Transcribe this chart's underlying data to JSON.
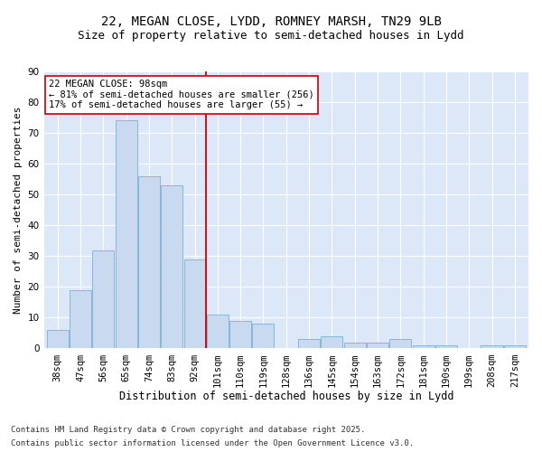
{
  "title1": "22, MEGAN CLOSE, LYDD, ROMNEY MARSH, TN29 9LB",
  "title2": "Size of property relative to semi-detached houses in Lydd",
  "xlabel": "Distribution of semi-detached houses by size in Lydd",
  "ylabel": "Number of semi-detached properties",
  "categories": [
    "38sqm",
    "47sqm",
    "56sqm",
    "65sqm",
    "74sqm",
    "83sqm",
    "92sqm",
    "101sqm",
    "110sqm",
    "119sqm",
    "128sqm",
    "136sqm",
    "145sqm",
    "154sqm",
    "163sqm",
    "172sqm",
    "181sqm",
    "190sqm",
    "199sqm",
    "208sqm",
    "217sqm"
  ],
  "values": [
    6,
    19,
    32,
    74,
    56,
    53,
    29,
    11,
    9,
    8,
    0,
    3,
    4,
    2,
    2,
    3,
    1,
    1,
    0,
    1,
    1
  ],
  "bar_color": "#c8d9f0",
  "bar_edge_color": "#7aafd4",
  "vline_color": "#cc0000",
  "annotation_label": "22 MEGAN CLOSE: 98sqm",
  "annotation_line1": "← 81% of semi-detached houses are smaller (256)",
  "annotation_line2": "17% of semi-detached houses are larger (55) →",
  "annotation_box_color": "#ffffff",
  "annotation_box_edge_color": "#cc0000",
  "ylim": [
    0,
    90
  ],
  "yticks": [
    0,
    10,
    20,
    30,
    40,
    50,
    60,
    70,
    80,
    90
  ],
  "bg_color": "#dce8f8",
  "footer1": "Contains HM Land Registry data © Crown copyright and database right 2025.",
  "footer2": "Contains public sector information licensed under the Open Government Licence v3.0.",
  "title1_fontsize": 10,
  "title2_fontsize": 9,
  "xlabel_fontsize": 8.5,
  "ylabel_fontsize": 8,
  "tick_fontsize": 7.5,
  "annotation_fontsize": 7.5,
  "footer_fontsize": 6.5
}
